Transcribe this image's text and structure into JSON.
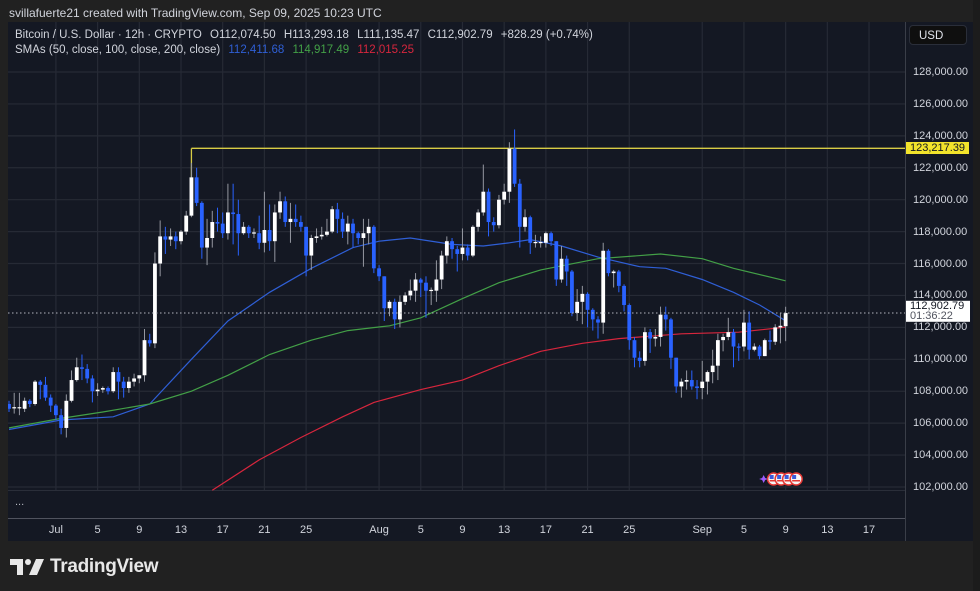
{
  "header": {
    "attribution": "svillafuerte21 created with TradingView.com, Sep 09, 2025 10:23 UTC"
  },
  "legend": {
    "symbol": "Bitcoin / U.S. Dollar · 12h · CRYPTO",
    "open": "O112,074.50",
    "high": "H113,293.18",
    "low": "L111,135.47",
    "close": "C112,902.79",
    "change": "+828.29 (+0.74%)",
    "sma_label": "SMAs (50, close, 100, close, 200, close)",
    "sma50": "112,411.68",
    "sma100": "114,917.49",
    "sma200": "112,015.25"
  },
  "colors": {
    "up": "#ffffff",
    "down": "#2962ff",
    "up_wick": "#9598a1",
    "sma50": "#2f5fd6",
    "sma100": "#43a047",
    "sma200": "#d7263d",
    "level": "#d8cc45",
    "grid": "#262a35"
  },
  "price_axis": {
    "currency": "USD",
    "level_label": "123,217.39",
    "current_price": "112,902.79",
    "countdown": "01:36:22"
  },
  "pane_menu": "...",
  "footer": {
    "brand": "TradingView"
  },
  "event_icons": [
    "us-flag",
    "us-flag",
    "us-flag",
    "us-flag"
  ],
  "chart_data": {
    "type": "candlestick",
    "title": "Bitcoin / U.S. Dollar · 12h · CRYPTO",
    "value_multiplier": 1000,
    "candles_ohlc_thousands": [
      [
        107.2,
        107.4,
        106.7,
        106.9
      ],
      [
        107.0,
        107.9,
        106.6,
        107.0
      ],
      [
        107.0,
        107.9,
        106.5,
        107.0
      ],
      [
        106.9,
        107.6,
        106.7,
        107.4
      ],
      [
        107.4,
        107.5,
        107.0,
        107.2
      ],
      [
        107.2,
        108.7,
        107.1,
        108.6
      ],
      [
        108.6,
        108.7,
        107.5,
        108.4
      ],
      [
        108.4,
        108.9,
        107.4,
        107.6
      ],
      [
        107.6,
        107.8,
        106.7,
        107.1
      ],
      [
        107.1,
        107.2,
        106.2,
        106.5
      ],
      [
        106.5,
        106.9,
        105.3,
        105.7
      ],
      [
        105.7,
        107.8,
        105.1,
        107.4
      ],
      [
        107.4,
        109.3,
        107.3,
        108.7
      ],
      [
        108.7,
        110.1,
        108.6,
        109.5
      ],
      [
        109.5,
        110.3,
        108.7,
        109.4
      ],
      [
        109.4,
        109.7,
        108.5,
        108.8
      ],
      [
        108.8,
        109.0,
        107.3,
        108.0
      ],
      [
        108.0,
        108.5,
        107.7,
        108.1
      ],
      [
        108.1,
        108.3,
        107.9,
        108.2
      ],
      [
        108.2,
        108.3,
        107.8,
        108.0
      ],
      [
        108.0,
        109.5,
        107.9,
        109.2
      ],
      [
        109.2,
        109.5,
        107.5,
        108.6
      ],
      [
        108.6,
        108.9,
        107.6,
        108.2
      ],
      [
        108.2,
        108.9,
        107.9,
        108.6
      ],
      [
        108.6,
        109.1,
        108.3,
        108.8
      ],
      [
        108.8,
        109.0,
        108.5,
        109.0
      ],
      [
        109.0,
        111.9,
        108.6,
        111.2
      ],
      [
        111.2,
        111.6,
        110.8,
        111.0
      ],
      [
        111.0,
        116.7,
        110.7,
        116.0
      ],
      [
        116.0,
        118.7,
        115.2,
        117.7
      ],
      [
        117.7,
        118.3,
        116.6,
        117.5
      ],
      [
        117.5,
        118.2,
        117.1,
        117.7
      ],
      [
        117.7,
        118.0,
        116.9,
        117.4
      ],
      [
        117.4,
        118.1,
        117.2,
        118.0
      ],
      [
        118.0,
        119.3,
        117.8,
        119.0
      ],
      [
        119.0,
        122.3,
        118.9,
        121.4
      ],
      [
        121.4,
        122.0,
        119.6,
        119.8
      ],
      [
        119.8,
        119.9,
        116.3,
        117.0
      ],
      [
        117.0,
        118.8,
        115.9,
        117.6
      ],
      [
        117.6,
        119.3,
        117.0,
        118.6
      ],
      [
        118.6,
        119.5,
        118.0,
        118.5
      ],
      [
        118.5,
        119.2,
        117.6,
        117.9
      ],
      [
        117.9,
        121.0,
        117.5,
        119.2
      ],
      [
        119.2,
        121.0,
        117.2,
        119.1
      ],
      [
        119.1,
        120.0,
        116.5,
        117.9
      ],
      [
        117.9,
        118.6,
        117.8,
        118.3
      ],
      [
        118.3,
        118.4,
        117.6,
        117.9
      ],
      [
        117.9,
        118.2,
        117.6,
        117.95
      ],
      [
        117.9,
        119.0,
        116.9,
        117.3
      ],
      [
        117.3,
        120.5,
        116.7,
        118.1
      ],
      [
        118.1,
        119.7,
        116.8,
        117.4
      ],
      [
        117.4,
        119.7,
        116.1,
        119.2
      ],
      [
        119.2,
        120.5,
        118.8,
        119.9
      ],
      [
        119.9,
        120.2,
        118.3,
        118.6
      ],
      [
        118.6,
        119.8,
        117.3,
        118.8
      ],
      [
        118.8,
        119.7,
        118.3,
        118.6
      ],
      [
        118.6,
        119.0,
        118.0,
        118.3
      ],
      [
        118.3,
        118.3,
        115.2,
        116.5
      ],
      [
        116.5,
        117.8,
        115.6,
        117.6
      ],
      [
        117.6,
        118.2,
        117.3,
        117.7
      ],
      [
        117.7,
        118.3,
        117.5,
        117.8
      ],
      [
        117.8,
        118.8,
        117.7,
        118.0
      ],
      [
        118.0,
        119.6,
        117.9,
        119.4
      ],
      [
        119.4,
        119.8,
        117.9,
        118.8
      ],
      [
        118.8,
        119.2,
        117.6,
        118.0
      ],
      [
        118.0,
        119.0,
        117.2,
        118.5
      ],
      [
        118.5,
        118.8,
        117.0,
        117.9
      ],
      [
        117.9,
        118.0,
        117.2,
        117.6
      ],
      [
        117.6,
        118.8,
        115.8,
        117.9
      ],
      [
        117.9,
        118.8,
        117.2,
        118.3
      ],
      [
        118.3,
        118.4,
        115.4,
        115.7
      ],
      [
        115.7,
        115.9,
        114.9,
        115.2
      ],
      [
        115.2,
        115.2,
        112.4,
        113.2
      ],
      [
        113.2,
        113.7,
        112.7,
        113.6
      ],
      [
        113.6,
        113.8,
        111.9,
        112.5
      ],
      [
        112.5,
        114.0,
        112.0,
        113.6
      ],
      [
        113.6,
        114.2,
        113.4,
        114.0
      ],
      [
        114.0,
        115.0,
        113.7,
        114.3
      ],
      [
        114.3,
        115.4,
        113.6,
        115.0
      ],
      [
        115.0,
        115.1,
        113.9,
        114.8
      ],
      [
        114.8,
        115.2,
        112.6,
        114.3
      ],
      [
        114.3,
        114.5,
        113.4,
        114.35
      ],
      [
        114.3,
        116.2,
        113.6,
        115.0
      ],
      [
        115.0,
        116.8,
        114.4,
        116.5
      ],
      [
        116.5,
        117.7,
        116.0,
        117.4
      ],
      [
        117.4,
        117.6,
        116.3,
        116.9
      ],
      [
        116.9,
        117.1,
        115.5,
        116.6
      ],
      [
        116.6,
        118.2,
        116.2,
        117.0
      ],
      [
        117.0,
        117.2,
        116.2,
        116.5
      ],
      [
        116.5,
        118.4,
        116.4,
        118.3
      ],
      [
        118.3,
        119.4,
        118.0,
        119.2
      ],
      [
        119.2,
        122.2,
        119.0,
        120.5
      ],
      [
        120.5,
        120.7,
        117.7,
        118.6
      ],
      [
        118.6,
        118.9,
        118.0,
        118.4
      ],
      [
        118.4,
        120.3,
        118.2,
        120.0
      ],
      [
        120.0,
        121.0,
        119.7,
        120.5
      ],
      [
        120.5,
        123.6,
        119.8,
        123.2
      ],
      [
        123.2,
        124.4,
        120.8,
        121.0
      ],
      [
        121.0,
        121.3,
        117.0,
        118.3
      ],
      [
        118.3,
        119.4,
        118.0,
        118.9
      ],
      [
        118.9,
        119.0,
        116.6,
        117.3
      ],
      [
        117.3,
        117.8,
        117.0,
        117.35
      ],
      [
        117.3,
        117.7,
        117.0,
        117.35
      ],
      [
        117.3,
        118.0,
        117.0,
        117.9
      ],
      [
        117.9,
        118.0,
        117.1,
        117.4
      ],
      [
        117.4,
        117.4,
        114.6,
        115.0
      ],
      [
        115.0,
        117.1,
        114.8,
        116.3
      ],
      [
        116.3,
        116.5,
        114.6,
        115.5
      ],
      [
        115.5,
        115.6,
        112.7,
        112.9
      ],
      [
        112.9,
        114.4,
        112.4,
        113.6
      ],
      [
        113.6,
        114.6,
        112.2,
        114.1
      ],
      [
        114.1,
        114.2,
        112.0,
        113.1
      ],
      [
        113.1,
        113.2,
        111.8,
        112.5
      ],
      [
        112.5,
        112.7,
        111.3,
        112.3
      ],
      [
        112.3,
        117.3,
        111.6,
        116.8
      ],
      [
        116.8,
        116.9,
        115.2,
        115.4
      ],
      [
        115.4,
        115.6,
        114.5,
        115.5
      ],
      [
        115.5,
        115.6,
        114.2,
        114.6
      ],
      [
        114.6,
        114.7,
        113.0,
        113.4
      ],
      [
        113.4,
        113.5,
        110.6,
        111.2
      ],
      [
        111.2,
        111.4,
        109.5,
        110.1
      ],
      [
        110.1,
        110.5,
        109.5,
        109.9
      ],
      [
        109.9,
        112.0,
        109.6,
        111.7
      ],
      [
        111.7,
        111.9,
        110.4,
        111.3
      ],
      [
        111.3,
        111.9,
        110.8,
        111.4
      ],
      [
        111.4,
        113.3,
        110.8,
        112.8
      ],
      [
        112.8,
        113.3,
        111.8,
        112.5
      ],
      [
        112.5,
        112.6,
        109.4,
        110.1
      ],
      [
        110.1,
        110.1,
        107.9,
        108.3
      ],
      [
        108.3,
        108.8,
        107.6,
        108.6
      ],
      [
        108.6,
        109.3,
        108.1,
        108.7
      ],
      [
        108.7,
        109.3,
        108.1,
        108.3
      ],
      [
        108.3,
        108.7,
        107.5,
        108.2
      ],
      [
        108.2,
        109.9,
        107.5,
        108.6
      ],
      [
        108.6,
        109.3,
        107.8,
        109.2
      ],
      [
        109.2,
        110.6,
        108.5,
        109.6
      ],
      [
        109.6,
        111.6,
        108.7,
        111.2
      ],
      [
        111.2,
        111.6,
        110.5,
        111.4
      ],
      [
        111.4,
        112.6,
        111.2,
        111.7
      ],
      [
        111.7,
        111.9,
        109.5,
        110.8
      ],
      [
        110.8,
        111.0,
        109.9,
        110.75
      ],
      [
        110.8,
        113.1,
        110.5,
        112.3
      ],
      [
        112.3,
        113.0,
        110.0,
        110.6
      ],
      [
        110.6,
        111.0,
        110.5,
        110.8
      ],
      [
        110.8,
        110.9,
        110.0,
        110.2
      ],
      [
        110.2,
        111.3,
        110.2,
        111.2
      ],
      [
        111.2,
        111.8,
        110.6,
        111.1
      ],
      [
        111.1,
        112.2,
        110.9,
        112.0
      ],
      [
        112.0,
        112.9,
        111.0,
        112.1
      ],
      [
        112.0745,
        113.29318,
        111.13547,
        112.90279
      ]
    ],
    "sma_series": [
      {
        "name": "SMA 50",
        "color_key": "sma50",
        "points_index_value_thousands": [
          [
            0,
            105.6
          ],
          [
            10,
            106.2
          ],
          [
            20,
            106.4
          ],
          [
            27,
            107.2
          ],
          [
            35,
            110.0
          ],
          [
            42,
            112.4
          ],
          [
            50,
            114.2
          ],
          [
            58,
            115.7
          ],
          [
            66,
            117.0
          ],
          [
            71,
            117.4
          ],
          [
            77,
            117.6
          ],
          [
            85,
            117.2
          ],
          [
            91,
            117.1
          ],
          [
            96,
            117.3
          ],
          [
            100,
            117.5
          ],
          [
            106,
            117.1
          ],
          [
            113,
            116.4
          ],
          [
            121,
            115.8
          ],
          [
            126,
            115.7
          ],
          [
            133,
            115.0
          ],
          [
            139,
            114.2
          ],
          [
            144,
            113.4
          ],
          [
            149,
            112.41
          ]
        ]
      },
      {
        "name": "SMA 100",
        "color_key": "sma100",
        "points_index_value_thousands": [
          [
            0,
            105.7
          ],
          [
            10,
            106.3
          ],
          [
            18,
            106.7
          ],
          [
            27,
            107.2
          ],
          [
            35,
            108.0
          ],
          [
            42,
            109.0
          ],
          [
            50,
            110.3
          ],
          [
            58,
            111.2
          ],
          [
            65,
            111.8
          ],
          [
            73,
            112.1
          ],
          [
            79,
            112.6
          ],
          [
            87,
            113.8
          ],
          [
            94,
            114.8
          ],
          [
            102,
            115.6
          ],
          [
            113,
            116.3
          ],
          [
            125,
            116.6
          ],
          [
            133,
            116.3
          ],
          [
            139,
            115.7
          ],
          [
            149,
            114.92
          ]
        ]
      },
      {
        "name": "SMA 200",
        "color_key": "sma200",
        "points_index_value_thousands": [
          [
            39,
            101.8
          ],
          [
            48,
            103.7
          ],
          [
            56,
            105.1
          ],
          [
            64,
            106.4
          ],
          [
            70,
            107.3
          ],
          [
            79,
            108.1
          ],
          [
            87,
            108.7
          ],
          [
            94,
            109.6
          ],
          [
            102,
            110.5
          ],
          [
            110,
            111.0
          ],
          [
            117,
            111.3
          ],
          [
            129,
            111.6
          ],
          [
            140,
            111.7
          ],
          [
            149,
            112.02
          ]
        ]
      }
    ],
    "horizontal_level": {
      "price": 123217.39,
      "start_index": 35
    },
    "current_price": 112902.79,
    "xlim_index": [
      -0.19,
      171.9
    ],
    "ylim": [
      101812,
      131132
    ],
    "grid": true,
    "y_ticks": [
      {
        "value": 102000,
        "label": "102,000.00"
      },
      {
        "value": 104000,
        "label": "104,000.00"
      },
      {
        "value": 106000,
        "label": "106,000.00"
      },
      {
        "value": 108000,
        "label": "108,000.00"
      },
      {
        "value": 110000,
        "label": "110,000.00"
      },
      {
        "value": 112000,
        "label": "112,000.00"
      },
      {
        "value": 114000,
        "label": "114,000.00"
      },
      {
        "value": 116000,
        "label": "116,000.00"
      },
      {
        "value": 118000,
        "label": "118,000.00"
      },
      {
        "value": 120000,
        "label": "120,000.00"
      },
      {
        "value": 122000,
        "label": "122,000.00"
      },
      {
        "value": 124000,
        "label": "124,000.00"
      },
      {
        "value": 126000,
        "label": "126,000.00"
      },
      {
        "value": 128000,
        "label": "128,000.00"
      }
    ],
    "x_ticks": [
      {
        "index": 9,
        "label": "Jul"
      },
      {
        "index": 17,
        "label": "5"
      },
      {
        "index": 25,
        "label": "9"
      },
      {
        "index": 33,
        "label": "13"
      },
      {
        "index": 41,
        "label": "17"
      },
      {
        "index": 49,
        "label": "21"
      },
      {
        "index": 57,
        "label": "25"
      },
      {
        "index": 71,
        "label": "Aug"
      },
      {
        "index": 79,
        "label": "5"
      },
      {
        "index": 87,
        "label": "9"
      },
      {
        "index": 95,
        "label": "13"
      },
      {
        "index": 103,
        "label": "17"
      },
      {
        "index": 111,
        "label": "21"
      },
      {
        "index": 119,
        "label": "25"
      },
      {
        "index": 133,
        "label": "Sep"
      },
      {
        "index": 141,
        "label": "5"
      },
      {
        "index": 149,
        "label": "9"
      },
      {
        "index": 157,
        "label": "13"
      },
      {
        "index": 165,
        "label": "17"
      }
    ]
  }
}
